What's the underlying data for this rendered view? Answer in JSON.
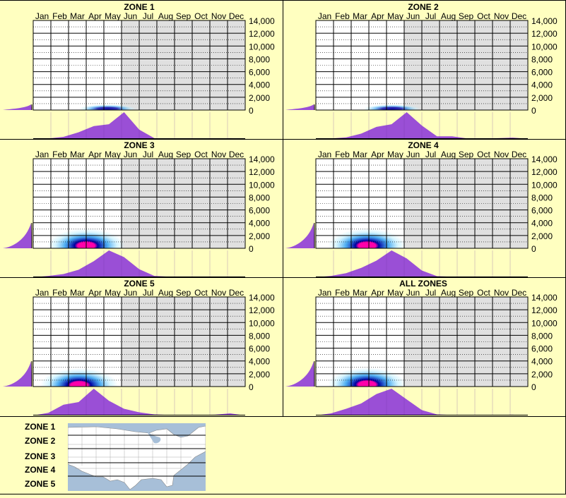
{
  "months": [
    "Jan",
    "Feb",
    "Mar",
    "Apr",
    "May",
    "Jun",
    "Jul",
    "Aug",
    "Sep",
    "Oct",
    "Nov",
    "Dec"
  ],
  "y_ticks": [
    "14,000",
    "12,000",
    "10,000",
    "8,000",
    "6,000",
    "4,000",
    "2,000",
    "0"
  ],
  "colors": {
    "background": "#ffffc0",
    "plot_bg": "#ffffff",
    "shaded_bg": "#e0e0e0",
    "density_fill": "#9a4fd6",
    "grid": "#000000",
    "heat_outer": "#bfefff",
    "heat_mid": "#2f9fef",
    "heat_inner": "#0000a0",
    "heat_core": "#ff00aa"
  },
  "chart_data": [
    {
      "type": "heatmap",
      "title": "ZONE 1",
      "x_categories": [
        "Jan",
        "Feb",
        "Mar",
        "Apr",
        "May",
        "Jun",
        "Jul",
        "Aug",
        "Sep",
        "Oct",
        "Nov",
        "Dec"
      ],
      "ylim": [
        0,
        14000
      ],
      "shaded_from_month": "Jun",
      "peak": {
        "month": 4.2,
        "elevation": 200,
        "intensity": 0.35
      },
      "month_density": [
        0.0,
        0.02,
        0.08,
        0.25,
        0.48,
        0.55,
        1.0,
        0.35,
        0.03,
        0.01,
        0.01,
        0.01,
        0.02,
        0.03,
        0.01
      ],
      "elevation_density": [
        0.0,
        0.05,
        0.1,
        0.15,
        0.18,
        0.22,
        1.0
      ]
    },
    {
      "type": "heatmap",
      "title": "ZONE 2",
      "x_categories": [
        "Jan",
        "Feb",
        "Mar",
        "Apr",
        "May",
        "Jun",
        "Jul",
        "Aug",
        "Sep",
        "Oct",
        "Nov",
        "Dec"
      ],
      "ylim": [
        0,
        14000
      ],
      "shaded_from_month": "Jun",
      "peak": {
        "month": 4.3,
        "elevation": 200,
        "intensity": 0.55
      },
      "month_density": [
        0.0,
        0.02,
        0.06,
        0.2,
        0.45,
        0.55,
        1.0,
        0.5,
        0.1,
        0.1,
        0.02,
        0.02,
        0.03,
        0.05,
        0.01
      ],
      "elevation_density": [
        0.0,
        0.05,
        0.1,
        0.15,
        0.18,
        0.25,
        1.0
      ]
    },
    {
      "type": "heatmap",
      "title": "ZONE 3",
      "x_categories": [
        "Jan",
        "Feb",
        "Mar",
        "Apr",
        "May",
        "Jun",
        "Jul",
        "Aug",
        "Sep",
        "Oct",
        "Nov",
        "Dec"
      ],
      "ylim": [
        0,
        14000
      ],
      "shaded_from_month": "Jun",
      "peak": {
        "month": 3.0,
        "elevation": 400,
        "intensity": 1.0
      },
      "month_density": [
        0.0,
        0.05,
        0.12,
        0.28,
        0.6,
        1.0,
        0.75,
        0.3,
        0.05,
        0.02,
        0.01,
        0.01,
        0.01,
        0.02,
        0.0
      ],
      "elevation_density": [
        0.0,
        0.1,
        0.2,
        0.3,
        0.45,
        0.6,
        1.0
      ]
    },
    {
      "type": "heatmap",
      "title": "ZONE 4",
      "x_categories": [
        "Jan",
        "Feb",
        "Mar",
        "Apr",
        "May",
        "Jun",
        "Jul",
        "Aug",
        "Sep",
        "Oct",
        "Nov",
        "Dec"
      ],
      "ylim": [
        0,
        14000
      ],
      "shaded_from_month": "Jun",
      "peak": {
        "month": 2.9,
        "elevation": 400,
        "intensity": 1.0
      },
      "month_density": [
        0.0,
        0.05,
        0.15,
        0.35,
        0.62,
        1.0,
        0.7,
        0.25,
        0.04,
        0.02,
        0.01,
        0.01,
        0.01,
        0.02,
        0.0
      ],
      "elevation_density": [
        0.0,
        0.1,
        0.22,
        0.35,
        0.5,
        0.65,
        1.0
      ]
    },
    {
      "type": "heatmap",
      "title": "ZONE 5",
      "x_categories": [
        "Jan",
        "Feb",
        "Mar",
        "Apr",
        "May",
        "Jun",
        "Jul",
        "Aug",
        "Sep",
        "Oct",
        "Nov",
        "Dec"
      ],
      "ylim": [
        0,
        14000
      ],
      "shaded_from_month": "Jun",
      "peak": {
        "month": 2.6,
        "elevation": 200,
        "intensity": 1.0
      },
      "month_density": [
        0.0,
        0.1,
        0.4,
        0.5,
        1.0,
        0.55,
        0.25,
        0.12,
        0.04,
        0.02,
        0.01,
        0.02,
        0.03,
        0.08,
        0.0
      ],
      "elevation_density": [
        0.0,
        0.1,
        0.2,
        0.3,
        0.4,
        0.5,
        1.0
      ]
    },
    {
      "type": "heatmap",
      "title": "ALL ZONES",
      "x_categories": [
        "Jan",
        "Feb",
        "Mar",
        "Apr",
        "May",
        "Jun",
        "Jul",
        "Aug",
        "Sep",
        "Oct",
        "Nov",
        "Dec"
      ],
      "ylim": [
        0,
        14000
      ],
      "shaded_from_month": "Jun",
      "peak": {
        "month": 2.9,
        "elevation": 300,
        "intensity": 1.0
      },
      "month_density": [
        0.0,
        0.08,
        0.25,
        0.45,
        0.8,
        1.0,
        0.6,
        0.2,
        0.04,
        0.02,
        0.01,
        0.01,
        0.02,
        0.03,
        0.0
      ],
      "elevation_density": [
        0.0,
        0.1,
        0.22,
        0.35,
        0.5,
        0.65,
        1.0
      ]
    }
  ],
  "legend": {
    "zones": [
      "ZONE 1",
      "ZONE 2",
      "ZONE 3",
      "ZONE 4",
      "ZONE 5"
    ]
  }
}
